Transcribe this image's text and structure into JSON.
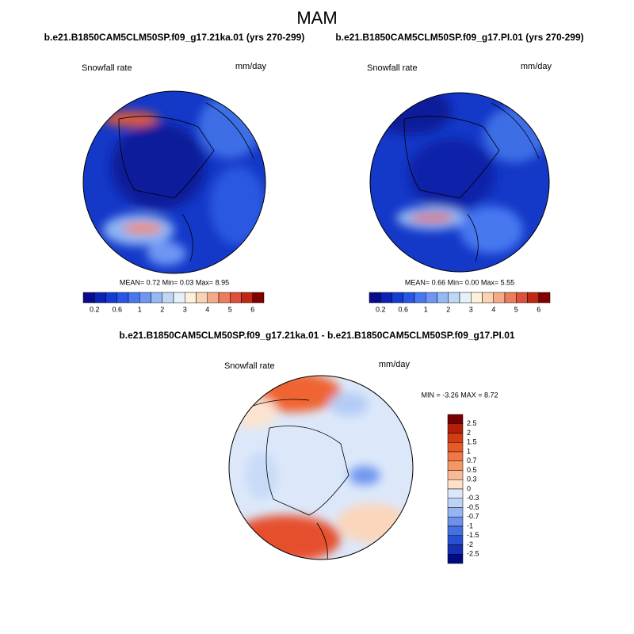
{
  "title": "MAM",
  "panels": [
    {
      "title": "b.e21.B1850CAM5CLM50SP.f09_g17.21ka.01 (yrs 270-299)",
      "variable": "Snowfall rate",
      "units": "mm/day",
      "stats": "MEAN=  0.72  Min=  0.03  Max=  8.95",
      "colorbar_labels": [
        "0.2",
        "0.6",
        "1",
        "2",
        "3",
        "4",
        "5",
        "6"
      ]
    },
    {
      "title": "b.e21.B1850CAM5CLM50SP.f09_g17.PI.01 (yrs 270-299)",
      "variable": "Snowfall rate",
      "units": "mm/day",
      "stats": "MEAN=  0.66  Min=  0.00  Max=  5.55",
      "colorbar_labels": [
        "0.2",
        "0.6",
        "1",
        "2",
        "3",
        "4",
        "5",
        "6"
      ]
    }
  ],
  "difference": {
    "title": "b.e21.B1850CAM5CLM50SP.f09_g17.21ka.01 - b.e21.B1850CAM5CLM50SP.f09_g17.PI.01",
    "variable": "Snowfall rate",
    "units": "mm/day",
    "stats": "MIN = -3.26 MAX =  8.72",
    "colorbar_labels": [
      "2.5",
      "2",
      "1.5",
      "1",
      "0.7",
      "0.5",
      "0.3",
      "0",
      "-0.3",
      "-0.5",
      "-0.7",
      "-1",
      "-1.5",
      "-2",
      "-2.5"
    ]
  }
}
